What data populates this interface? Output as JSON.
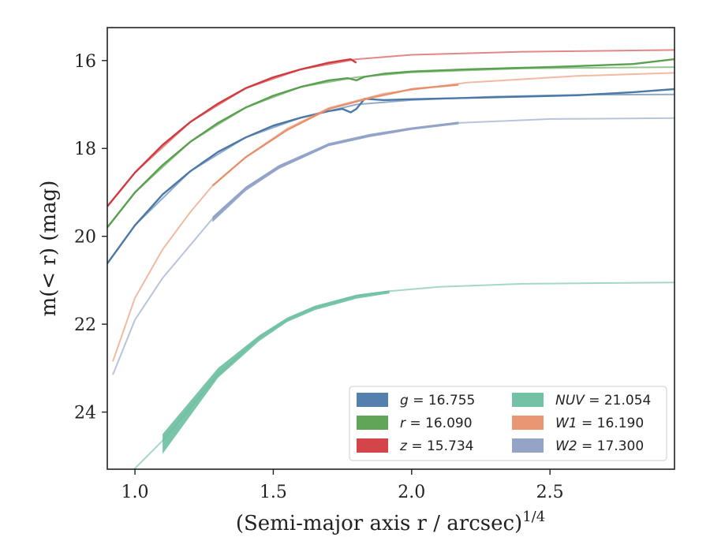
{
  "chart_data": {
    "type": "line",
    "xlabel": "(Semi-major axis r / arcsec)",
    "xlabel_exponent": "1/4",
    "ylabel": "m(< r) (mag)",
    "xlim": [
      0.9,
      2.95
    ],
    "ylim": [
      25.3,
      15.25
    ],
    "y_inverted": true,
    "xticks": [
      1.0,
      1.5,
      2.0,
      2.5
    ],
    "xtick_labels": [
      "1.0",
      "1.5",
      "2.0",
      "2.5"
    ],
    "yticks": [
      16,
      18,
      20,
      22,
      24
    ],
    "ytick_labels": [
      "16",
      "18",
      "20",
      "22",
      "24"
    ],
    "grid": false,
    "legend_position": "lower-right",
    "series": [
      {
        "key": "g",
        "name": "g = 16.755",
        "legend_var": "g",
        "legend_value": "= 16.755",
        "color": "#4c78a8",
        "measured": [
          [
            0.9,
            20.62
          ],
          [
            1.0,
            19.75
          ],
          [
            1.1,
            19.05
          ],
          [
            1.2,
            18.52
          ],
          [
            1.3,
            18.08
          ],
          [
            1.4,
            17.75
          ],
          [
            1.5,
            17.48
          ],
          [
            1.6,
            17.3
          ],
          [
            1.7,
            17.15
          ],
          [
            1.75,
            17.1
          ],
          [
            1.78,
            17.18
          ],
          [
            1.8,
            17.1
          ],
          [
            1.83,
            16.87
          ],
          [
            1.9,
            16.9
          ],
          [
            2.0,
            16.88
          ],
          [
            2.2,
            16.85
          ],
          [
            2.4,
            16.82
          ],
          [
            2.6,
            16.79
          ],
          [
            2.8,
            16.72
          ],
          [
            2.95,
            16.65
          ]
        ],
        "model": [
          [
            0.9,
            20.62
          ],
          [
            1.0,
            19.75
          ],
          [
            1.2,
            18.52
          ],
          [
            1.4,
            17.75
          ],
          [
            1.6,
            17.3
          ],
          [
            1.8,
            17.0
          ],
          [
            2.0,
            16.9
          ],
          [
            2.3,
            16.82
          ],
          [
            2.6,
            16.78
          ],
          [
            2.95,
            16.77
          ]
        ],
        "band": []
      },
      {
        "key": "r",
        "name": "r = 16.090",
        "legend_var": "r",
        "legend_value": "= 16.090",
        "color": "#59a14f",
        "measured": [
          [
            0.9,
            19.8
          ],
          [
            1.0,
            19.0
          ],
          [
            1.1,
            18.38
          ],
          [
            1.2,
            17.85
          ],
          [
            1.3,
            17.42
          ],
          [
            1.4,
            17.07
          ],
          [
            1.5,
            16.8
          ],
          [
            1.6,
            16.6
          ],
          [
            1.7,
            16.45
          ],
          [
            1.77,
            16.4
          ],
          [
            1.8,
            16.45
          ],
          [
            1.83,
            16.37
          ],
          [
            1.9,
            16.3
          ],
          [
            2.0,
            16.25
          ],
          [
            2.2,
            16.2
          ],
          [
            2.5,
            16.15
          ],
          [
            2.8,
            16.08
          ],
          [
            2.95,
            15.97
          ]
        ],
        "model": [
          [
            0.9,
            19.8
          ],
          [
            1.0,
            19.0
          ],
          [
            1.2,
            17.85
          ],
          [
            1.4,
            17.07
          ],
          [
            1.6,
            16.6
          ],
          [
            1.8,
            16.38
          ],
          [
            2.0,
            16.27
          ],
          [
            2.4,
            16.18
          ],
          [
            2.95,
            16.15
          ]
        ],
        "band": []
      },
      {
        "key": "z",
        "name": "z = 15.734",
        "legend_var": "z",
        "legend_value": "= 15.734",
        "color": "#d13b3f",
        "measured": [
          [
            0.9,
            19.32
          ],
          [
            1.0,
            18.55
          ],
          [
            1.1,
            17.92
          ],
          [
            1.2,
            17.4
          ],
          [
            1.3,
            16.98
          ],
          [
            1.4,
            16.63
          ],
          [
            1.5,
            16.38
          ],
          [
            1.6,
            16.2
          ],
          [
            1.7,
            16.05
          ],
          [
            1.78,
            15.97
          ],
          [
            1.8,
            16.05
          ]
        ],
        "model": [
          [
            0.9,
            19.32
          ],
          [
            1.0,
            18.55
          ],
          [
            1.2,
            17.4
          ],
          [
            1.4,
            16.63
          ],
          [
            1.6,
            16.2
          ],
          [
            1.8,
            15.97
          ],
          [
            2.0,
            15.87
          ],
          [
            2.4,
            15.8
          ],
          [
            2.95,
            15.76
          ]
        ],
        "band": []
      },
      {
        "key": "NUV",
        "name": "NUV = 21.054",
        "legend_var": "NUV",
        "legend_value": "= 21.054",
        "color": "#6cbfa0",
        "measured": [],
        "model": [
          [
            0.95,
            25.6
          ],
          [
            1.1,
            24.65
          ],
          [
            1.3,
            23.15
          ],
          [
            1.45,
            22.3
          ],
          [
            1.55,
            21.9
          ],
          [
            1.65,
            21.62
          ],
          [
            1.8,
            21.35
          ],
          [
            1.92,
            21.25
          ],
          [
            2.1,
            21.15
          ],
          [
            2.4,
            21.08
          ],
          [
            2.95,
            21.05
          ]
        ],
        "band": [
          [
            1.1,
            24.5,
            24.95
          ],
          [
            1.3,
            23.0,
            23.22
          ],
          [
            1.45,
            22.25,
            22.38
          ],
          [
            1.55,
            21.85,
            21.95
          ],
          [
            1.65,
            21.58,
            21.68
          ],
          [
            1.8,
            21.33,
            21.42
          ],
          [
            1.92,
            21.23,
            21.3
          ]
        ]
      },
      {
        "key": "W1",
        "name": "W1 = 16.190",
        "legend_var": "W1",
        "legend_value": "= 16.190",
        "color": "#e8906a",
        "measured": [
          [
            1.28,
            18.85
          ],
          [
            1.4,
            18.2
          ],
          [
            1.55,
            17.58
          ],
          [
            1.7,
            17.1
          ],
          [
            1.85,
            16.85
          ],
          [
            2.0,
            16.65
          ],
          [
            2.17,
            16.55
          ]
        ],
        "model": [
          [
            0.92,
            22.85
          ],
          [
            1.0,
            21.4
          ],
          [
            1.1,
            20.3
          ],
          [
            1.2,
            19.45
          ],
          [
            1.28,
            18.85
          ],
          [
            1.4,
            18.2
          ],
          [
            1.55,
            17.55
          ],
          [
            1.7,
            17.08
          ],
          [
            1.9,
            16.75
          ],
          [
            2.2,
            16.5
          ],
          [
            2.6,
            16.35
          ],
          [
            2.95,
            16.28
          ]
        ],
        "band": []
      },
      {
        "key": "W2",
        "name": "W2 = 17.300",
        "legend_var": "W2",
        "legend_value": "= 17.300",
        "color": "#8d9fc4",
        "measured": [],
        "model": [
          [
            0.92,
            23.15
          ],
          [
            1.0,
            21.9
          ],
          [
            1.1,
            20.95
          ],
          [
            1.2,
            20.2
          ],
          [
            1.28,
            19.6
          ],
          [
            1.4,
            18.9
          ],
          [
            1.52,
            18.42
          ],
          [
            1.7,
            17.92
          ],
          [
            1.85,
            17.7
          ],
          [
            2.0,
            17.55
          ],
          [
            2.17,
            17.42
          ],
          [
            2.5,
            17.33
          ],
          [
            2.95,
            17.31
          ]
        ],
        "band": [
          [
            1.28,
            19.55,
            19.68
          ],
          [
            1.4,
            18.87,
            18.97
          ],
          [
            1.52,
            18.38,
            18.47
          ],
          [
            1.7,
            17.88,
            17.95
          ],
          [
            1.85,
            17.67,
            17.74
          ],
          [
            2.0,
            17.52,
            17.58
          ],
          [
            2.17,
            17.39,
            17.45
          ]
        ]
      }
    ]
  }
}
